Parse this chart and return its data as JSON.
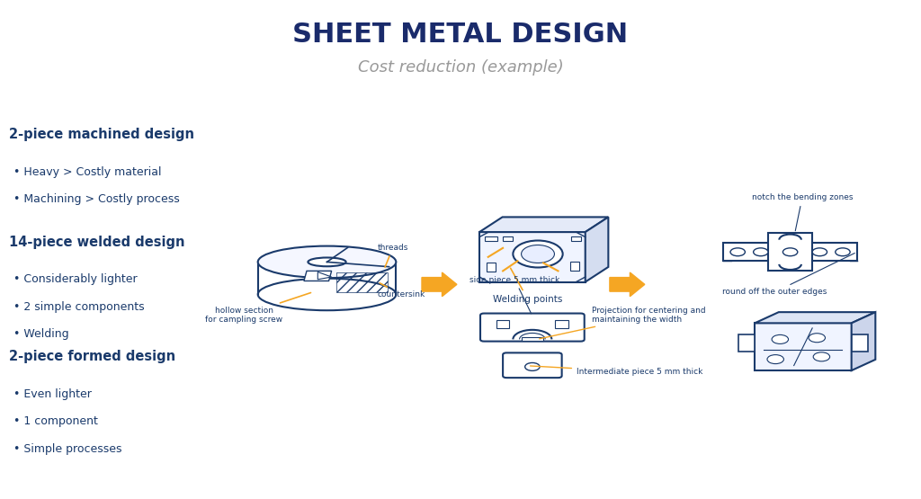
{
  "title": "SHEET METAL DESIGN",
  "subtitle": "Cost reduction (example)",
  "title_color": "#1a2b6b",
  "subtitle_color": "#999999",
  "bg_color": "#ffffff",
  "navy": "#1a3a6b",
  "orange": "#f5a623",
  "design_titles": [
    "2-piece machined design",
    "14-piece welded design",
    "2-piece formed design"
  ],
  "design_bullets": [
    [
      "Heavy > Costly material",
      "Machining > Costly process"
    ],
    [
      "Considerably lighter",
      "2 simple components",
      "Welding"
    ],
    [
      "Even lighter",
      "1 component",
      "Simple processes"
    ]
  ]
}
